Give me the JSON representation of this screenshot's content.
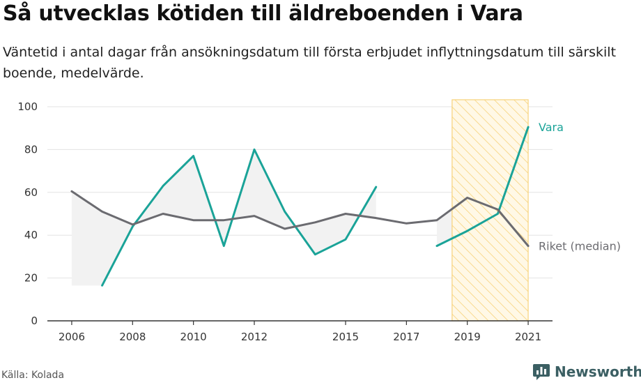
{
  "header": {
    "title": "Så utvecklas kötiden till äldreboenden i Vara",
    "subtitle": "Väntetid i antal dagar från ansökningsdatum till första erbjudet inflyttningsdatum till särskilt boende, medelvärde."
  },
  "footer": {
    "source": "Källa: Kolada",
    "brand": "Newsworthy",
    "brand_icon": "bar-chart-speech-bubble-icon"
  },
  "colors": {
    "vara": "#1aa398",
    "riket": "#6b6b70",
    "gap_fill": "#f2f2f2",
    "highlight_fill": "#fff8e6",
    "highlight_stroke": "#f7d27a",
    "grid": "#e3e3e3",
    "brand": "#3b5f63"
  },
  "chart_data": {
    "type": "line",
    "x": [
      2006,
      2007,
      2008,
      2009,
      2010,
      2011,
      2012,
      2013,
      2014,
      2015,
      2016,
      2017,
      2018,
      2019,
      2020,
      2021
    ],
    "x_ticks": [
      "2006",
      "2008",
      "2010",
      "2012",
      "2015",
      "2017",
      "2019",
      "2021"
    ],
    "y_ticks": [
      "0",
      "20",
      "40",
      "60",
      "80",
      "100"
    ],
    "ylim": [
      0,
      100
    ],
    "xlim": [
      2005.2,
      2021.8
    ],
    "grid": true,
    "highlight_range": [
      2018.5,
      2021
    ],
    "series": [
      {
        "name": "Vara",
        "values": [
          null,
          16.5,
          44,
          63,
          77,
          35,
          80,
          51,
          31,
          38,
          62.5,
          null,
          35,
          42,
          50,
          90.5
        ]
      },
      {
        "name": "Riket (median)",
        "values": [
          60.5,
          51,
          45,
          50,
          47,
          47,
          49,
          43,
          46,
          50,
          48,
          45.5,
          47,
          57.5,
          52,
          35
        ]
      }
    ]
  }
}
